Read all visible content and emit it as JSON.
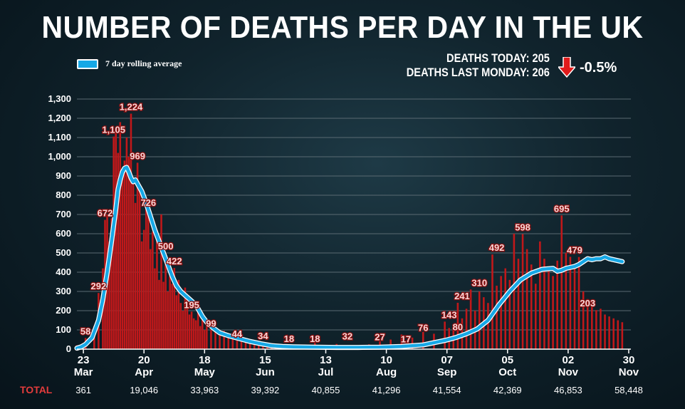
{
  "header": {
    "title": "NUMBER OF DEATHS PER DAY IN THE UK",
    "deaths_today": "DEATHS TODAY: 205",
    "deaths_last_monday": "DEATHS LAST MONDAY: 206",
    "change": "-0.5%"
  },
  "colors": {
    "bars": "#c0181a",
    "average_line": "#16a8e6",
    "arrow": "#e01b1b",
    "grid": "#5a6a72"
  },
  "chart_data": {
    "type": "bar",
    "ylim": [
      0,
      1300
    ],
    "yticks": [
      "0",
      "100",
      "200",
      "300",
      "400",
      "500",
      "600",
      "700",
      "800",
      "900",
      "1,000",
      "1,100",
      "1,200",
      "1,300"
    ],
    "series": [
      {
        "name": "7 day rolling average",
        "type": "line",
        "x": [
          0,
          2,
          4,
          7,
          10,
          12,
          14,
          16,
          18,
          19,
          20,
          21,
          22,
          23,
          24,
          25,
          26,
          27,
          28,
          30,
          32,
          34,
          36,
          38,
          40,
          42,
          44,
          46,
          48,
          50,
          52,
          54,
          56,
          58,
          60,
          63,
          66,
          70,
          75,
          80,
          85,
          90,
          95,
          100,
          110,
          120,
          130,
          140,
          150,
          160,
          170,
          175,
          180,
          185,
          190,
          195,
          200,
          205,
          210,
          215,
          220,
          222,
          224,
          226,
          228,
          230,
          232,
          234,
          236,
          238,
          240,
          242,
          244,
          246,
          248,
          250,
          252
        ],
        "values": [
          5,
          12,
          25,
          60,
          150,
          260,
          400,
          560,
          730,
          830,
          880,
          920,
          940,
          945,
          920,
          890,
          870,
          880,
          860,
          820,
          760,
          690,
          620,
          560,
          500,
          440,
          380,
          330,
          300,
          280,
          260,
          240,
          210,
          170,
          140,
          110,
          85,
          70,
          55,
          40,
          28,
          18,
          14,
          12,
          10,
          9,
          9,
          10,
          14,
          22,
          45,
          60,
          80,
          105,
          150,
          230,
          300,
          360,
          395,
          415,
          420,
          405,
          410,
          420,
          425,
          430,
          440,
          455,
          470,
          465,
          470,
          470,
          480,
          470,
          465,
          460,
          455
        ]
      }
    ],
    "bar_x": [
      0,
      4,
      8,
      10,
      12,
      13,
      14,
      15,
      16,
      17,
      18,
      19,
      20,
      21,
      22,
      23,
      24,
      25,
      26,
      27,
      28,
      29,
      30,
      31,
      32,
      33,
      34,
      35,
      36,
      37,
      38,
      39,
      40,
      41,
      42,
      43,
      44,
      45,
      46,
      47,
      48,
      49,
      50,
      51,
      52,
      53,
      54,
      55,
      56,
      57,
      58,
      59,
      60,
      62,
      64,
      66,
      68,
      70,
      72,
      74,
      76,
      78,
      80,
      82,
      84,
      86,
      88,
      90,
      92,
      95,
      98,
      102,
      106,
      110,
      115,
      120,
      125,
      130,
      135,
      140,
      145,
      150,
      155,
      160,
      165,
      170,
      172,
      174,
      176,
      178,
      180,
      182,
      184,
      186,
      188,
      190,
      192,
      194,
      196,
      198,
      200,
      202,
      204,
      206,
      208,
      210,
      212,
      214,
      216,
      218,
      220,
      222,
      224,
      226,
      228,
      230,
      232,
      234,
      236,
      238,
      240,
      242,
      244,
      246,
      248,
      250,
      252
    ],
    "bar_values": [
      20,
      58,
      120,
      292,
      420,
      672,
      700,
      560,
      680,
      1105,
      1150,
      1020,
      1180,
      900,
      980,
      1100,
      1000,
      1224,
      880,
      760,
      969,
      840,
      560,
      620,
      760,
      726,
      520,
      610,
      420,
      620,
      360,
      700,
      350,
      500,
      300,
      380,
      340,
      422,
      280,
      360,
      240,
      200,
      320,
      260,
      180,
      195,
      160,
      150,
      220,
      120,
      170,
      100,
      130,
      99,
      110,
      80,
      95,
      70,
      60,
      44,
      60,
      40,
      34,
      30,
      28,
      25,
      22,
      18,
      20,
      18,
      16,
      15,
      18,
      32,
      20,
      27,
      20,
      17,
      25,
      40,
      50,
      76,
      60,
      90,
      80,
      143,
      110,
      100,
      241,
      160,
      210,
      310,
      200,
      300,
      270,
      240,
      492,
      330,
      380,
      420,
      360,
      600,
      470,
      598,
      520,
      440,
      340,
      560,
      470,
      420,
      380,
      460,
      695,
      500,
      480,
      420,
      479,
      300,
      260,
      220,
      203,
      210,
      180,
      170,
      160,
      150,
      140
    ],
    "labels": [
      {
        "x": 4,
        "v": 58,
        "text": "58"
      },
      {
        "x": 10,
        "v": 292,
        "text": "292"
      },
      {
        "x": 13,
        "v": 672,
        "text": "672"
      },
      {
        "x": 17,
        "v": 1105,
        "text": "1,105"
      },
      {
        "x": 25,
        "v": 1224,
        "text": "1,224"
      },
      {
        "x": 28,
        "v": 969,
        "text": "969"
      },
      {
        "x": 33,
        "v": 726,
        "text": "726"
      },
      {
        "x": 41,
        "v": 500,
        "text": "500"
      },
      {
        "x": 45,
        "v": 422,
        "text": "422"
      },
      {
        "x": 53,
        "v": 195,
        "text": "195"
      },
      {
        "x": 62,
        "v": 99,
        "text": "99"
      },
      {
        "x": 74,
        "v": 44,
        "text": "44"
      },
      {
        "x": 86,
        "v": 34,
        "text": "34"
      },
      {
        "x": 98,
        "v": 18,
        "text": "18"
      },
      {
        "x": 110,
        "v": 18,
        "text": "18"
      },
      {
        "x": 125,
        "v": 32,
        "text": "32"
      },
      {
        "x": 140,
        "v": 27,
        "text": "27"
      },
      {
        "x": 152,
        "v": 17,
        "text": "17"
      },
      {
        "x": 160,
        "v": 76,
        "text": "76"
      },
      {
        "x": 172,
        "v": 143,
        "text": "143"
      },
      {
        "x": 176,
        "v": 80,
        "text": "80"
      },
      {
        "x": 178,
        "v": 241,
        "text": "241"
      },
      {
        "x": 186,
        "v": 310,
        "text": "310"
      },
      {
        "x": 194,
        "v": 492,
        "text": "492"
      },
      {
        "x": 206,
        "v": 598,
        "text": "598"
      },
      {
        "x": 224,
        "v": 695,
        "text": "695"
      },
      {
        "x": 230,
        "v": 479,
        "text": "479"
      },
      {
        "x": 236,
        "v": 203,
        "text": "203"
      }
    ],
    "xticks": [
      {
        "x": 3,
        "day": "23",
        "month": "Mar",
        "total": "361"
      },
      {
        "x": 31,
        "day": "20",
        "month": "Apr",
        "total": "19,046"
      },
      {
        "x": 59,
        "day": "18",
        "month": "May",
        "total": "33,963"
      },
      {
        "x": 87,
        "day": "15",
        "month": "Jun",
        "total": "39,392"
      },
      {
        "x": 115,
        "day": "13",
        "month": "Jul",
        "total": "40,855"
      },
      {
        "x": 143,
        "day": "10",
        "month": "Aug",
        "total": "41,296"
      },
      {
        "x": 171,
        "day": "07",
        "month": "Sep",
        "total": "41,554"
      },
      {
        "x": 199,
        "day": "05",
        "month": "Oct",
        "total": "42,369"
      },
      {
        "x": 227,
        "day": "02",
        "month": "Nov",
        "total": "46,853"
      },
      {
        "x": 255,
        "day": "30",
        "month": "Nov",
        "total": "58,448"
      }
    ],
    "total_label": "TOTAL"
  }
}
